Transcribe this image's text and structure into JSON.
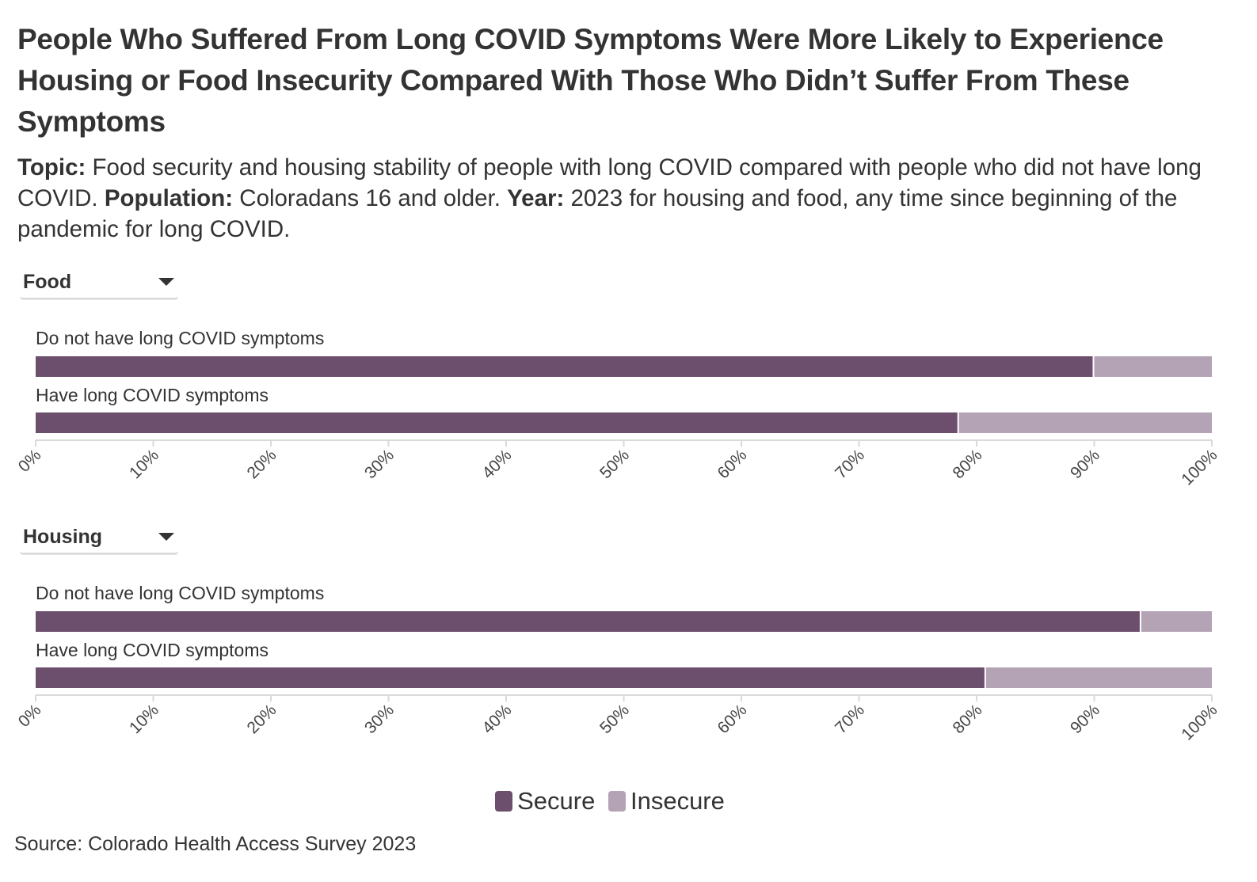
{
  "title": "People Who Suffered From Long COVID Symptoms Were More Likely to Experience Housing or Food Insecurity Compared With Those Who Didn’t Suffer From These Symptoms",
  "subtitle": {
    "topic_label": "Topic:",
    "topic_text": " Food security and housing stability of people with long COVID compared with people who did not have long COVID. ",
    "population_label": "Population:",
    "population_text": " Coloradans 16 and older. ",
    "year_label": "Year:",
    "year_text": " 2023 for housing and food, any time since beginning of the pandemic for long COVID."
  },
  "colors": {
    "secure": "#6c4f6d",
    "insecure": "#b3a3b4",
    "axis": "#d9d9d9",
    "text": "#333333"
  },
  "legend": [
    {
      "label": "Secure",
      "color": "#6c4f6d"
    },
    {
      "label": "Insecure",
      "color": "#b3a3b4"
    }
  ],
  "source": "Source: Colorado Health Access Survey 2023",
  "chart_data": [
    {
      "type": "bar",
      "orientation": "horizontal",
      "stacked": true,
      "selector": "Food",
      "categories": [
        "Do not have long COVID symptoms",
        "Have long COVID symptoms"
      ],
      "series": [
        {
          "name": "Secure",
          "values": [
            90,
            78.5
          ]
        },
        {
          "name": "Insecure",
          "values": [
            10,
            21.5
          ]
        }
      ],
      "xlim": [
        0,
        100
      ],
      "ticks": [
        "0%",
        "10%",
        "20%",
        "30%",
        "40%",
        "50%",
        "60%",
        "70%",
        "80%",
        "90%",
        "100%"
      ]
    },
    {
      "type": "bar",
      "orientation": "horizontal",
      "stacked": true,
      "selector": "Housing",
      "categories": [
        "Do not have long COVID symptoms",
        "Have long COVID symptoms"
      ],
      "series": [
        {
          "name": "Secure",
          "values": [
            94,
            80.8
          ]
        },
        {
          "name": "Insecure",
          "values": [
            6,
            19.2
          ]
        }
      ],
      "xlim": [
        0,
        100
      ],
      "ticks": [
        "0%",
        "10%",
        "20%",
        "30%",
        "40%",
        "50%",
        "60%",
        "70%",
        "80%",
        "90%",
        "100%"
      ]
    }
  ]
}
